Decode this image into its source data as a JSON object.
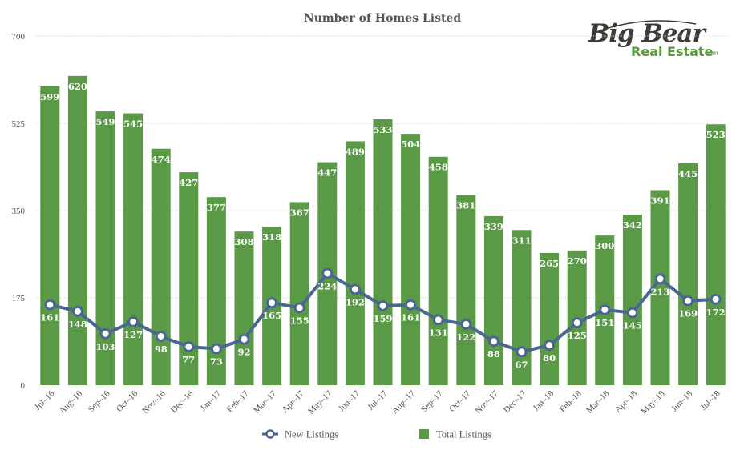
{
  "logo": {
    "big_text": "Big Bear",
    "sub_text": "Real Estate",
    "suffix": ".com"
  },
  "colors": {
    "bar": "#5a9a46",
    "line": "#4a6790",
    "grid": "#cccccc"
  },
  "chart_data": {
    "type": "bar",
    "title": "Number of Homes Listed",
    "xlabel": "",
    "ylabel": "",
    "ylim": [
      0,
      700
    ],
    "yticks": [
      0,
      175,
      350,
      525,
      700
    ],
    "grid": true,
    "legend_position": "bottom",
    "categories": [
      "Jul–16",
      "Aug–16",
      "Sep–16",
      "Oct–16",
      "Nov–16",
      "Dec–16",
      "Jan–17",
      "Feb–17",
      "Mar–17",
      "Apr–17",
      "May–17",
      "Jun–17",
      "Jul–17",
      "Aug–17",
      "Sep–17",
      "Oct–17",
      "Nov–17",
      "Dec–17",
      "Jan–18",
      "Feb–18",
      "Mar–18",
      "Apr–18",
      "May–18",
      "Jun–18",
      "Jul–18"
    ],
    "series": [
      {
        "name": "New Listings",
        "type": "line",
        "values": [
          161,
          148,
          103,
          127,
          98,
          77,
          73,
          92,
          165,
          155,
          224,
          192,
          159,
          161,
          131,
          122,
          88,
          67,
          80,
          125,
          151,
          145,
          213,
          169,
          172
        ]
      },
      {
        "name": "Total Listings",
        "type": "bar",
        "values": [
          599,
          620,
          549,
          545,
          474,
          427,
          377,
          308,
          318,
          367,
          447,
          489,
          533,
          504,
          458,
          381,
          339,
          311,
          265,
          270,
          300,
          342,
          391,
          445,
          523
        ]
      }
    ]
  }
}
